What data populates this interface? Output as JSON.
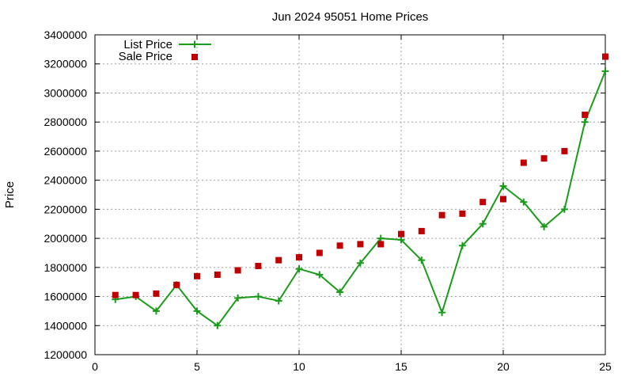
{
  "chart_data": {
    "type": "line",
    "title": "Jun 2024 95051 Home Prices",
    "xlabel": "",
    "ylabel": "Price",
    "xlim": [
      0,
      25
    ],
    "ylim": [
      1200000,
      3400000
    ],
    "x_ticks": [
      "0",
      "5",
      "10",
      "15",
      "20",
      "25"
    ],
    "y_ticks": [
      "1200000",
      "1400000",
      "1600000",
      "1800000",
      "2000000",
      "2200000",
      "2400000",
      "2600000",
      "2800000",
      "3000000",
      "3200000",
      "3400000"
    ],
    "grid": true,
    "legend_position": "top-left",
    "x": [
      1,
      2,
      3,
      4,
      5,
      6,
      7,
      8,
      9,
      10,
      11,
      12,
      13,
      14,
      15,
      16,
      17,
      18,
      19,
      20,
      21,
      22,
      23,
      24,
      25
    ],
    "series": [
      {
        "name": "List Price",
        "style": "line+cross",
        "color": "#1a9c1a",
        "values": [
          1580000,
          1600000,
          1500000,
          1680000,
          1500000,
          1400000,
          1590000,
          1600000,
          1570000,
          1790000,
          1750000,
          1630000,
          1830000,
          2000000,
          1990000,
          1850000,
          1490000,
          1950000,
          2100000,
          2360000,
          2250000,
          2080000,
          2200000,
          2800000,
          3150000
        ]
      },
      {
        "name": "Sale Price",
        "style": "square",
        "color": "#c00000",
        "values": [
          1610000,
          1610000,
          1620000,
          1680000,
          1740000,
          1750000,
          1780000,
          1810000,
          1850000,
          1870000,
          1900000,
          1950000,
          1960000,
          1960000,
          2030000,
          2050000,
          2160000,
          2170000,
          2250000,
          2270000,
          2520000,
          2550000,
          2600000,
          2850000,
          3250000
        ]
      }
    ]
  }
}
